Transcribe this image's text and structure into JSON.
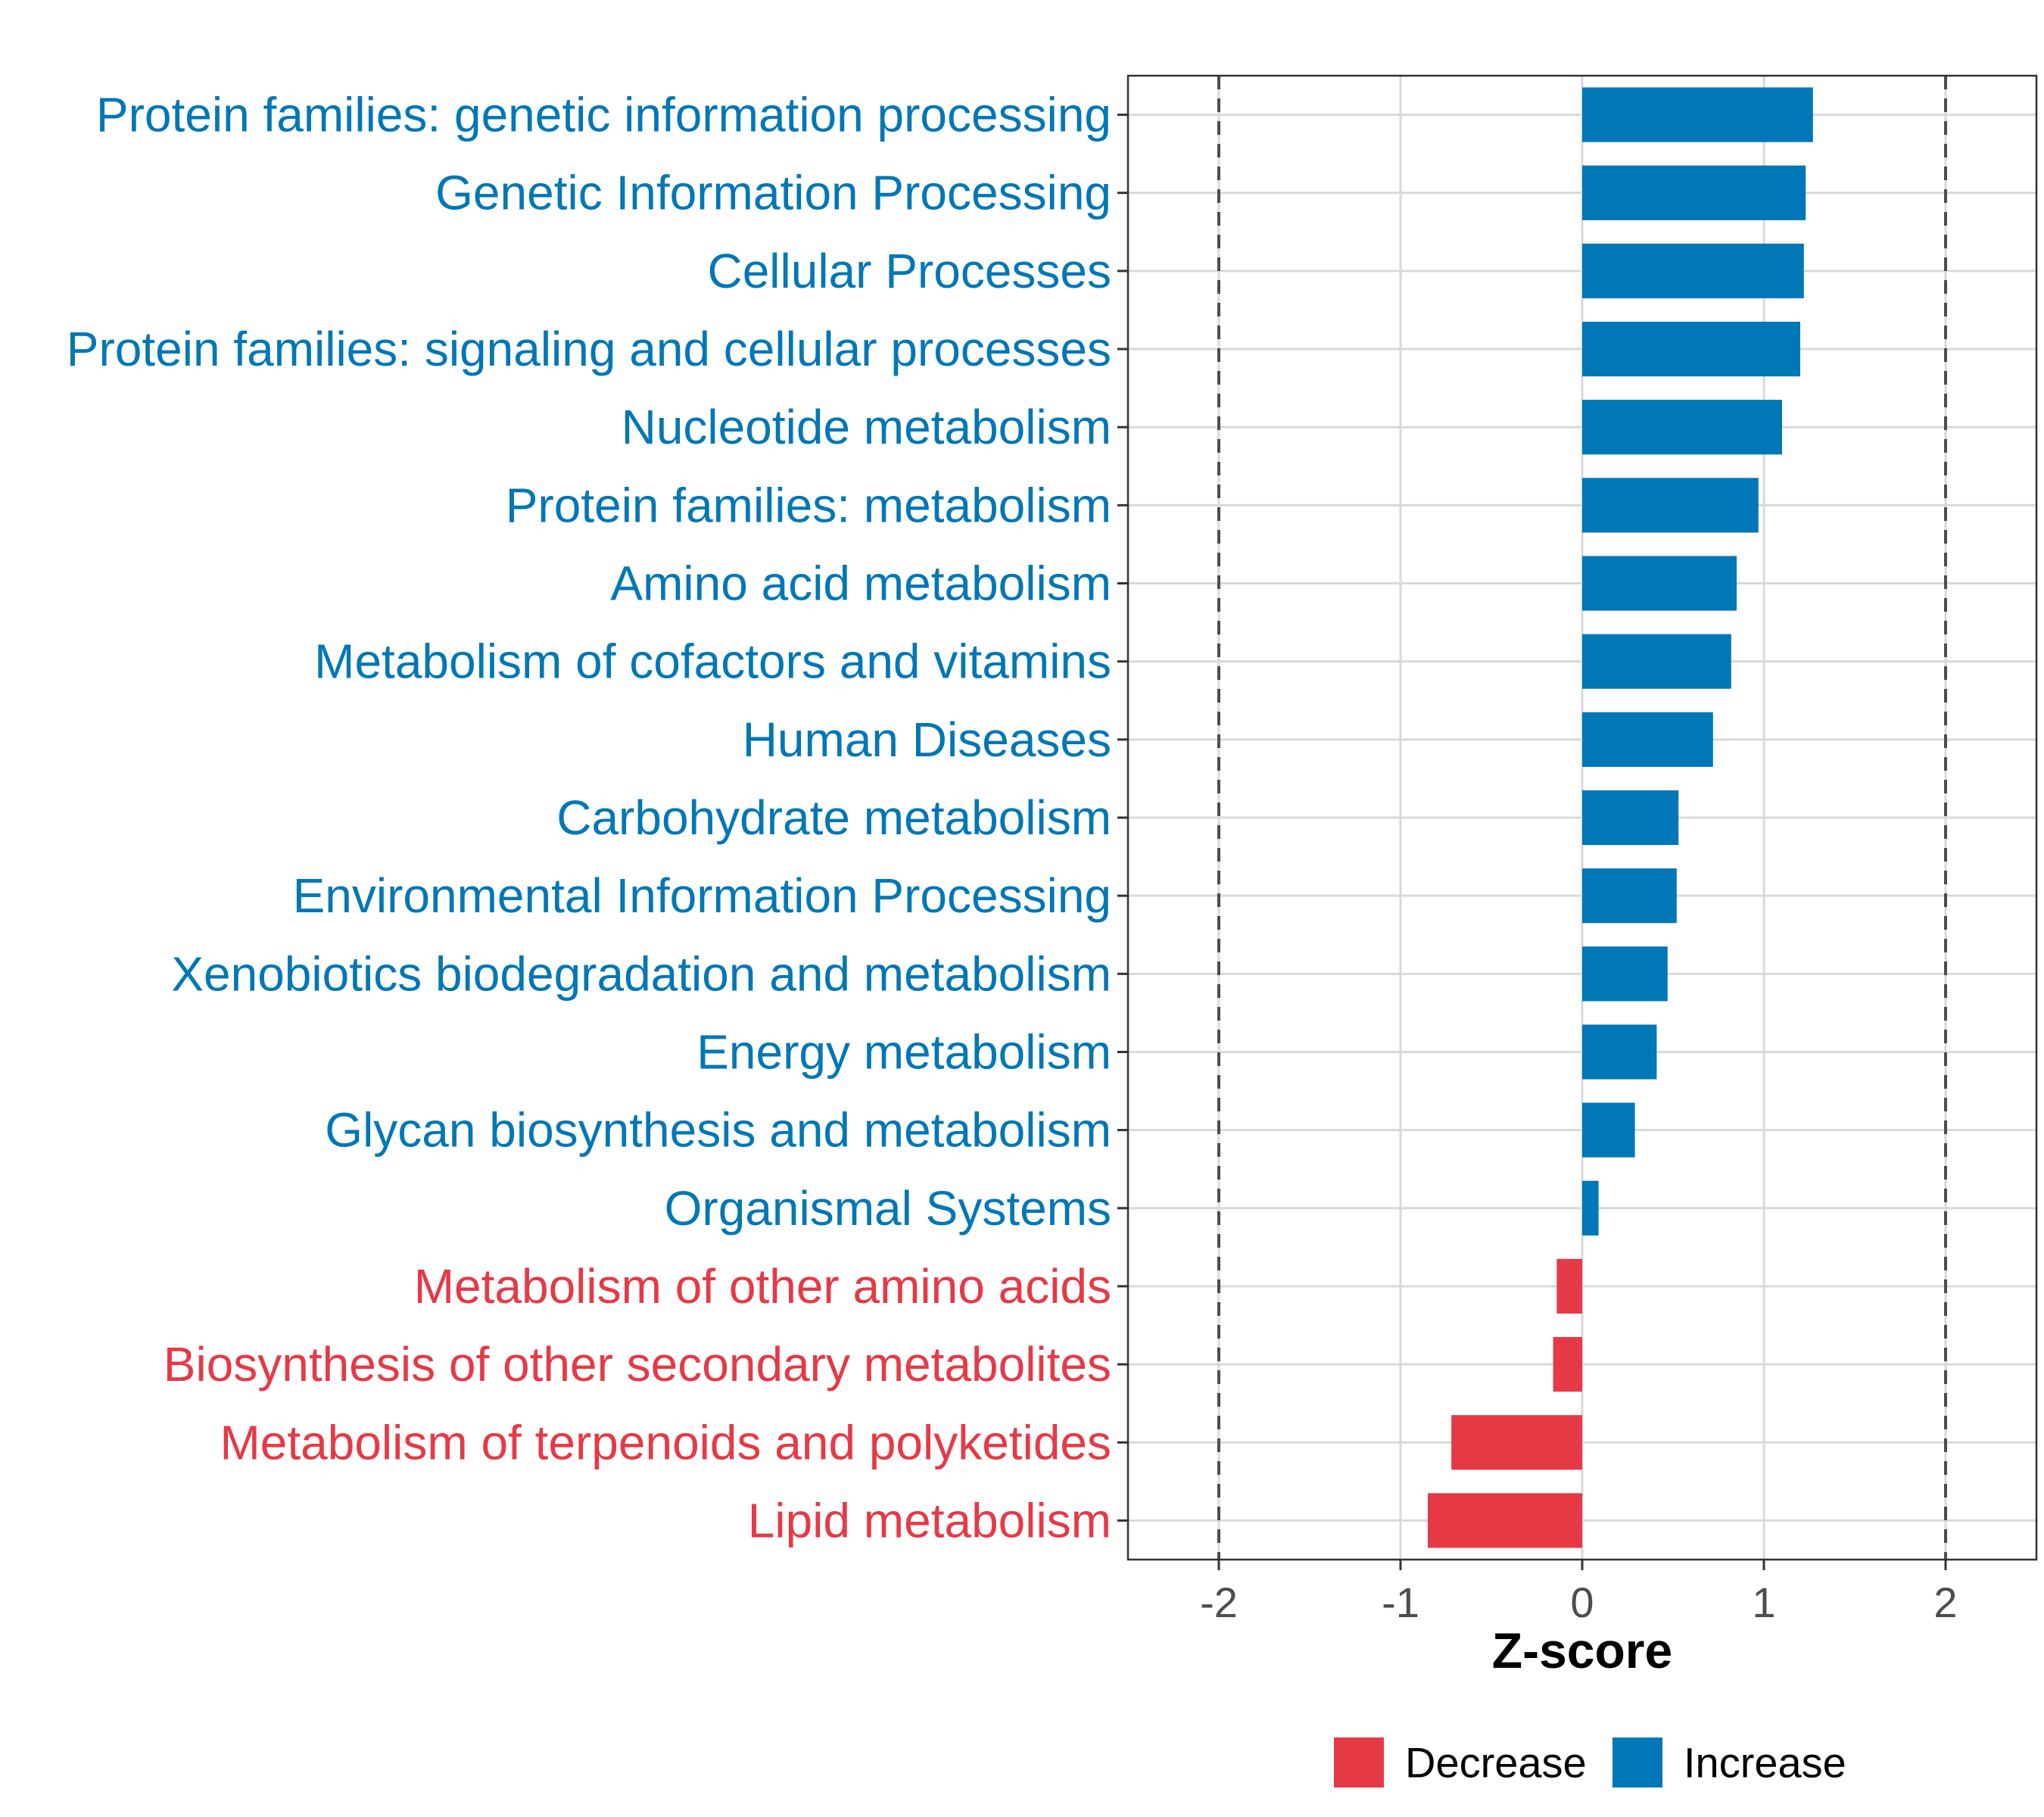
{
  "chart_data": {
    "type": "bar",
    "orientation": "horizontal",
    "title": "",
    "xlabel": "Z-score",
    "ylabel": "",
    "xlim": [
      -2.5,
      2.5
    ],
    "xticks": [
      -2,
      -1,
      0,
      1,
      2
    ],
    "xtick_labels": [
      "-2",
      "-1",
      "0",
      "1",
      "2"
    ],
    "reference_lines": [
      -2,
      2
    ],
    "grid": true,
    "colors": {
      "Decrease": "#e63946",
      "Increase": "#0077b6"
    },
    "categories": [
      "Protein families: genetic information processing",
      "Genetic Information Processing",
      "Cellular Processes",
      "Protein families: signaling and cellular processes",
      "Nucleotide metabolism",
      "Protein families: metabolism",
      "Amino acid metabolism",
      "Metabolism of cofactors and vitamins",
      "Human Diseases",
      "Carbohydrate metabolism",
      "Environmental Information Processing",
      "Xenobiotics biodegradation and metabolism",
      "Energy metabolism",
      "Glycan biosynthesis and metabolism",
      "Organismal Systems",
      "Metabolism of other amino acids",
      "Biosynthesis of other secondary metabolites",
      "Metabolism of terpenoids and polyketides",
      "Lipid metabolism"
    ],
    "values": [
      1.27,
      1.23,
      1.22,
      1.2,
      1.1,
      0.97,
      0.85,
      0.82,
      0.72,
      0.53,
      0.52,
      0.47,
      0.41,
      0.29,
      0.09,
      -0.14,
      -0.16,
      -0.72,
      -0.85
    ],
    "groups": [
      "Increase",
      "Increase",
      "Increase",
      "Increase",
      "Increase",
      "Increase",
      "Increase",
      "Increase",
      "Increase",
      "Increase",
      "Increase",
      "Increase",
      "Increase",
      "Increase",
      "Increase",
      "Decrease",
      "Decrease",
      "Decrease",
      "Decrease"
    ],
    "legend": {
      "position": "bottom",
      "entries": [
        "Decrease",
        "Increase"
      ]
    }
  }
}
